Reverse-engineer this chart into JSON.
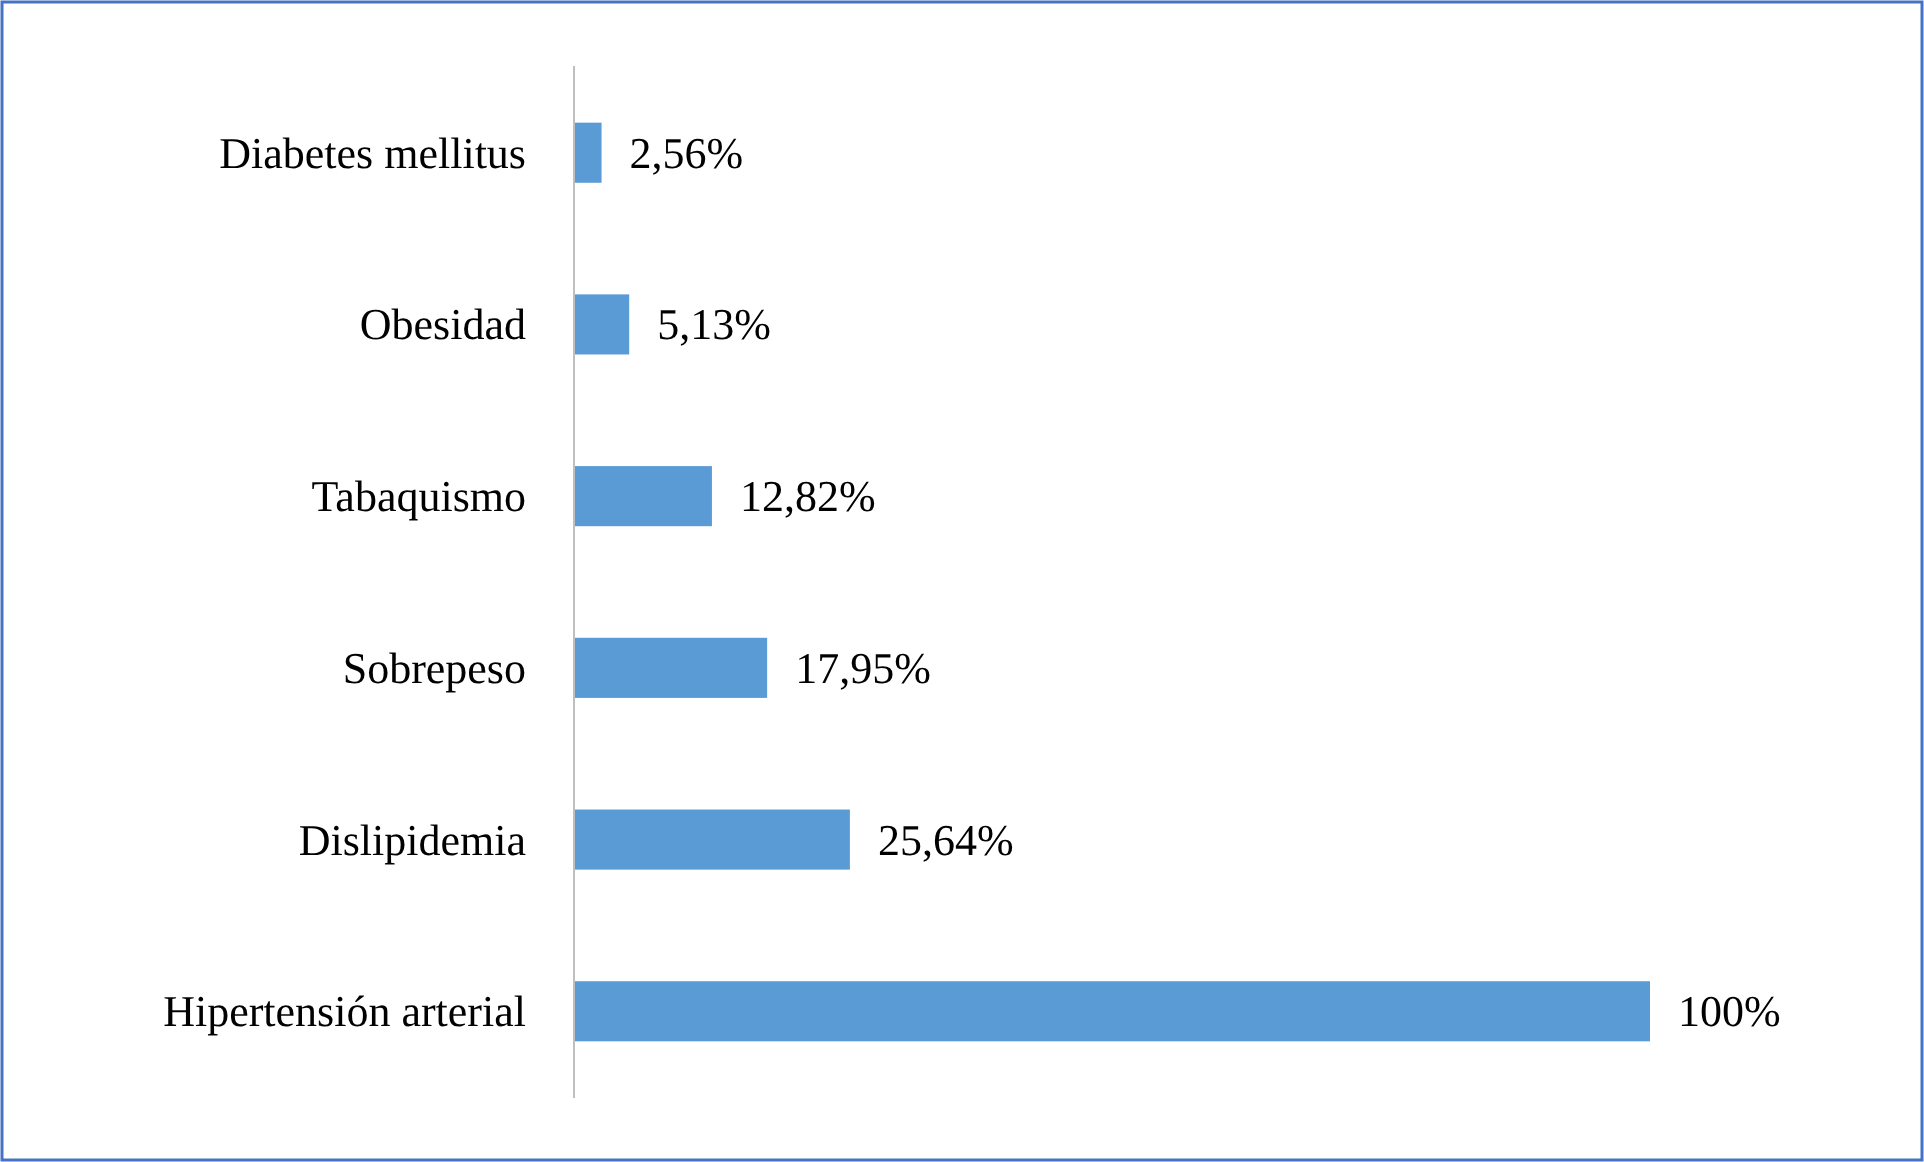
{
  "chart_data": {
    "type": "bar",
    "orientation": "horizontal",
    "categories": [
      "Diabetes mellitus",
      "Obesidad",
      "Tabaquismo",
      "Sobrepeso",
      "Dislipidemia",
      "Hipertensión arterial"
    ],
    "values": [
      2.56,
      5.13,
      12.82,
      17.95,
      25.64,
      100
    ],
    "value_labels": [
      "2,56%",
      "5,13%",
      "12,82%",
      "17,95%",
      "25,64%",
      "100%"
    ],
    "color": "#5b9bd5"
  }
}
